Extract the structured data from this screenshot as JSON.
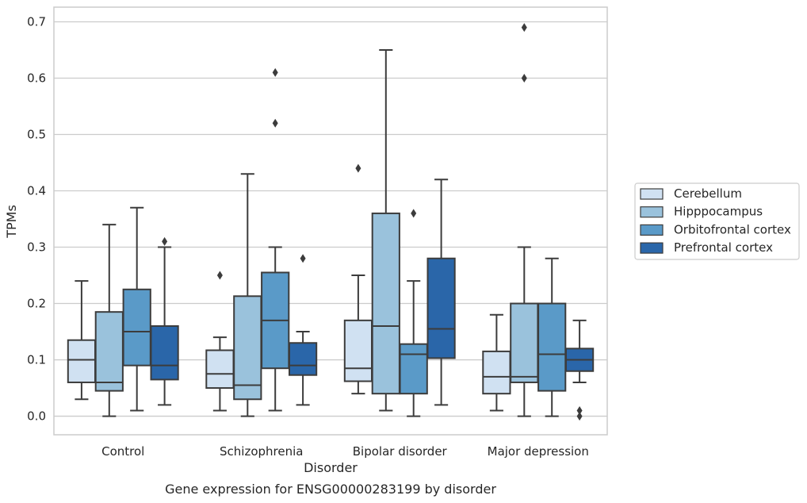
{
  "chart_data": {
    "type": "box",
    "title": "Gene expression for ENSG00000283199 by disorder",
    "xlabel": "Disorder",
    "ylabel": "TPMs",
    "ylim": [
      -0.033,
      0.726
    ],
    "yticks": [
      "0.0",
      "0.1",
      "0.2",
      "0.3",
      "0.4",
      "0.5",
      "0.6",
      "0.7"
    ],
    "grid": "horizontal",
    "legend_position": "right",
    "categories": [
      "Control",
      "Schizophrenia",
      "Bipolar disorder",
      "Major depression"
    ],
    "series": [
      {
        "name": "Cerebellum",
        "color": "#d0e1f2",
        "boxes": [
          {
            "whisker_low": 0.03,
            "q1": 0.06,
            "median": 0.1,
            "q3": 0.135,
            "whisker_high": 0.24,
            "outliers": []
          },
          {
            "whisker_low": 0.01,
            "q1": 0.05,
            "median": 0.075,
            "q3": 0.117,
            "whisker_high": 0.14,
            "outliers": [
              0.25
            ]
          },
          {
            "whisker_low": 0.04,
            "q1": 0.062,
            "median": 0.085,
            "q3": 0.17,
            "whisker_high": 0.25,
            "outliers": [
              0.44
            ]
          },
          {
            "whisker_low": 0.01,
            "q1": 0.04,
            "median": 0.07,
            "q3": 0.115,
            "whisker_high": 0.18,
            "outliers": []
          }
        ]
      },
      {
        "name": "Hipppocampus",
        "color": "#9ac2dc",
        "boxes": [
          {
            "whisker_low": 0.0,
            "q1": 0.045,
            "median": 0.06,
            "q3": 0.185,
            "whisker_high": 0.34,
            "outliers": []
          },
          {
            "whisker_low": 0.0,
            "q1": 0.03,
            "median": 0.055,
            "q3": 0.213,
            "whisker_high": 0.43,
            "outliers": []
          },
          {
            "whisker_low": 0.01,
            "q1": 0.04,
            "median": 0.16,
            "q3": 0.36,
            "whisker_high": 0.65,
            "outliers": []
          },
          {
            "whisker_low": 0.0,
            "q1": 0.06,
            "median": 0.07,
            "q3": 0.2,
            "whisker_high": 0.3,
            "outliers": [
              0.6,
              0.69
            ]
          }
        ]
      },
      {
        "name": "Orbitofrontal cortex",
        "color": "#5a9ac8",
        "boxes": [
          {
            "whisker_low": 0.01,
            "q1": 0.09,
            "median": 0.15,
            "q3": 0.225,
            "whisker_high": 0.37,
            "outliers": []
          },
          {
            "whisker_low": 0.01,
            "q1": 0.085,
            "median": 0.17,
            "q3": 0.255,
            "whisker_high": 0.3,
            "outliers": [
              0.52,
              0.61
            ]
          },
          {
            "whisker_low": 0.0,
            "q1": 0.04,
            "median": 0.11,
            "q3": 0.128,
            "whisker_high": 0.24,
            "outliers": [
              0.36
            ]
          },
          {
            "whisker_low": 0.0,
            "q1": 0.045,
            "median": 0.11,
            "q3": 0.2,
            "whisker_high": 0.28,
            "outliers": []
          }
        ]
      },
      {
        "name": "Prefrontal cortex",
        "color": "#2a66a9",
        "boxes": [
          {
            "whisker_low": 0.02,
            "q1": 0.065,
            "median": 0.09,
            "q3": 0.16,
            "whisker_high": 0.3,
            "outliers": [
              0.31
            ]
          },
          {
            "whisker_low": 0.02,
            "q1": 0.073,
            "median": 0.09,
            "q3": 0.13,
            "whisker_high": 0.15,
            "outliers": [
              0.28
            ]
          },
          {
            "whisker_low": 0.02,
            "q1": 0.103,
            "median": 0.155,
            "q3": 0.28,
            "whisker_high": 0.42,
            "outliers": []
          },
          {
            "whisker_low": 0.06,
            "q1": 0.08,
            "median": 0.1,
            "q3": 0.12,
            "whisker_high": 0.17,
            "outliers": [
              0.0,
              0.01
            ]
          }
        ]
      }
    ]
  }
}
